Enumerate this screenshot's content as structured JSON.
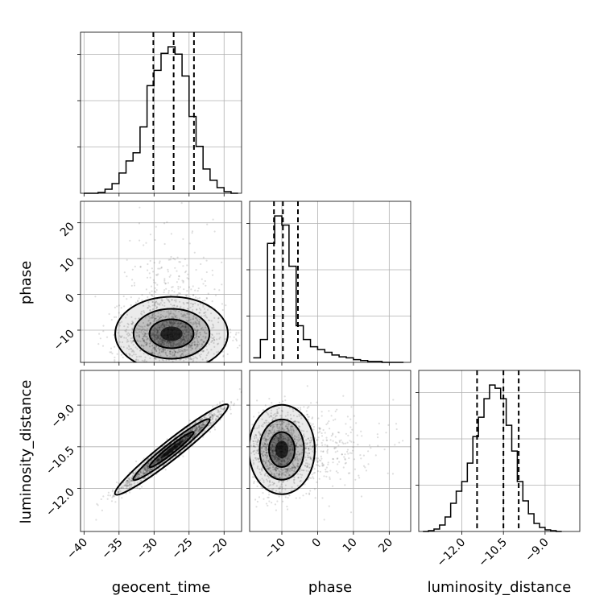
{
  "figure": "corner",
  "chart_data": {
    "type": "corner",
    "parameters": [
      "geocent_time",
      "phase",
      "luminosity_distance"
    ],
    "axes": {
      "geocent_time": {
        "range": [
          -40.5,
          -17.5
        ],
        "ticks": [
          -40,
          -35,
          -30,
          -25,
          -20
        ],
        "tick_labels": [
          "−40",
          "−35",
          "−30",
          "−25",
          "−20"
        ]
      },
      "phase": {
        "range": [
          -19,
          26
        ],
        "ticks": [
          -10,
          0,
          10,
          20
        ],
        "tick_labels": [
          "−10",
          "0",
          "10",
          "20"
        ]
      },
      "luminosity_distance": {
        "range": [
          -13.55,
          -7.75
        ],
        "ticks": [
          -12.0,
          -10.5,
          -9.0
        ],
        "tick_labels": [
          "−12.0",
          "−10.5",
          "−9.0"
        ]
      }
    },
    "histograms": [
      {
        "parameter": "geocent_time",
        "bin_edges": [
          -40,
          -39,
          -38,
          -37,
          -36,
          -35,
          -34,
          -33,
          -32,
          -31,
          -30,
          -29,
          -28,
          -27,
          -26,
          -25,
          -24,
          -23,
          -22,
          -21,
          -20,
          -19,
          -18
        ],
        "counts": [
          0,
          0,
          1,
          5,
          12,
          25,
          40,
          50,
          82,
          133,
          152,
          173,
          181,
          172,
          145,
          95,
          58,
          30,
          16,
          7,
          2,
          0
        ],
        "quantiles": [
          -30.1,
          -27.2,
          -24.3
        ]
      },
      {
        "parameter": "phase",
        "bin_edges": [
          -18,
          -16,
          -14,
          -12,
          -10,
          -8,
          -6,
          -4,
          -2,
          0,
          2,
          4,
          6,
          8,
          10,
          12,
          14,
          16,
          18,
          20,
          22,
          24
        ],
        "counts": [
          5,
          25,
          130,
          160,
          150,
          105,
          40,
          25,
          17,
          14,
          11,
          8,
          6,
          5,
          3,
          2,
          1,
          1,
          0,
          0,
          0
        ],
        "quantiles": [
          -12.2,
          -9.7,
          -5.5
        ]
      },
      {
        "parameter": "luminosity_distance",
        "bin_edges": [
          -13.4,
          -13.2,
          -13.0,
          -12.8,
          -12.6,
          -12.4,
          -12.2,
          -12.0,
          -11.8,
          -11.6,
          -11.4,
          -11.2,
          -11.0,
          -10.8,
          -10.6,
          -10.4,
          -10.2,
          -10.0,
          -9.8,
          -9.6,
          -9.4,
          -9.2,
          -9.0,
          -8.8,
          -8.6,
          -8.4
        ],
        "counts": [
          0,
          1,
          3,
          8,
          18,
          35,
          50,
          62,
          85,
          118,
          142,
          165,
          182,
          178,
          165,
          132,
          100,
          62,
          38,
          22,
          10,
          5,
          2,
          1,
          0
        ],
        "quantiles": [
          -11.45,
          -10.5,
          -9.95
        ]
      }
    ],
    "pairs": [
      {
        "x": "geocent_time",
        "y": "phase",
        "center": [
          -27.5,
          -11
        ],
        "spread": [
          3.5,
          4.5
        ],
        "correlation": 0
      },
      {
        "x": "geocent_time",
        "y": "luminosity_distance",
        "center": [
          -27.5,
          -10.6
        ],
        "spread": [
          3.5,
          0.7
        ],
        "correlation": 0.97
      },
      {
        "x": "phase",
        "y": "luminosity_distance",
        "center": [
          -10,
          -10.6
        ],
        "spread": [
          4,
          0.7
        ],
        "correlation": 0
      }
    ],
    "grid": true,
    "legend": "none"
  }
}
